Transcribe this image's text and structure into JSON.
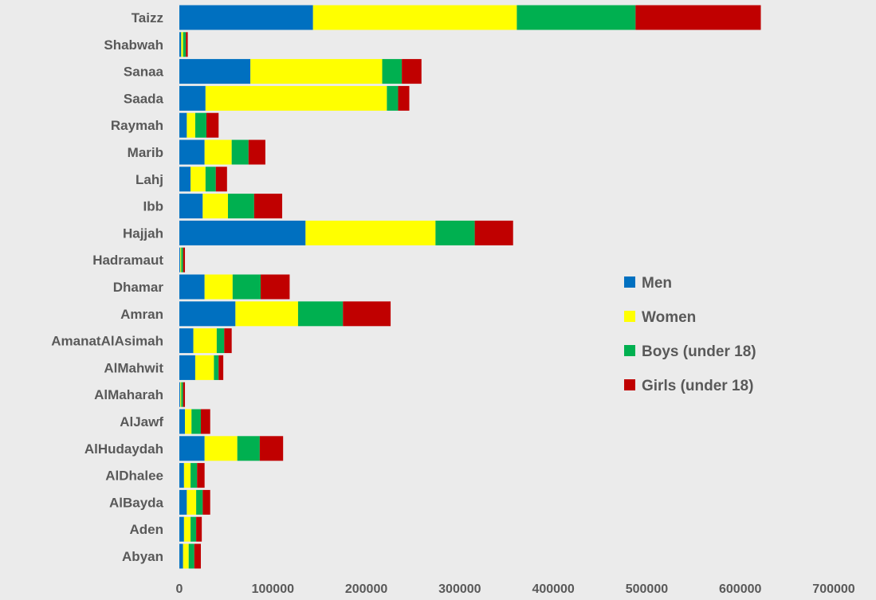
{
  "chart_data": {
    "type": "bar",
    "orientation": "horizontal",
    "stacked": true,
    "title": "",
    "xlabel": "",
    "ylabel": "",
    "xlim": [
      0,
      700000
    ],
    "x_ticks": [
      "0",
      "100000",
      "200000",
      "300000",
      "400000",
      "500000",
      "600000",
      "700000"
    ],
    "grid": false,
    "legend_position": "right",
    "categories": [
      "Taizz",
      "Shabwah",
      "Sanaa",
      "Saada",
      "Raymah",
      "Marib",
      "Lahj",
      "Ibb",
      "Hajjah",
      "Hadramaut",
      "Dhamar",
      "Amran",
      "AmanatAlAsimah",
      "AlMahwit",
      "AlMaharah",
      "AlJawf",
      "AlHudaydah",
      "AlDhalee",
      "AlBayda",
      "Aden",
      "Abyan"
    ],
    "series": [
      {
        "name": "Men",
        "color": "#0070c0",
        "values": [
          143000,
          2000,
          76000,
          28000,
          8000,
          27000,
          12000,
          25000,
          135000,
          1000,
          27000,
          60000,
          15000,
          17000,
          1000,
          6000,
          27000,
          5000,
          8000,
          5000,
          4000
        ]
      },
      {
        "name": "Women",
        "color": "#ffff00",
        "values": [
          218000,
          2000,
          141000,
          194000,
          9000,
          29000,
          16000,
          27000,
          139000,
          1000,
          30000,
          67000,
          25000,
          20000,
          1000,
          7000,
          35000,
          7000,
          10000,
          7000,
          6000
        ]
      },
      {
        "name": "Boys (under 18)",
        "color": "#00b050",
        "values": [
          127000,
          3000,
          21000,
          12000,
          12000,
          18000,
          11000,
          28000,
          42000,
          2000,
          30000,
          48000,
          8000,
          5000,
          2000,
          10000,
          24000,
          7000,
          7000,
          6000,
          6000
        ]
      },
      {
        "name": "Girls (under 18)",
        "color": "#c00000",
        "values": [
          134000,
          2000,
          21000,
          12000,
          13000,
          18000,
          12000,
          30000,
          41000,
          2000,
          31000,
          51000,
          8000,
          5000,
          2000,
          10000,
          25000,
          8000,
          8000,
          6000,
          7000
        ]
      }
    ]
  }
}
